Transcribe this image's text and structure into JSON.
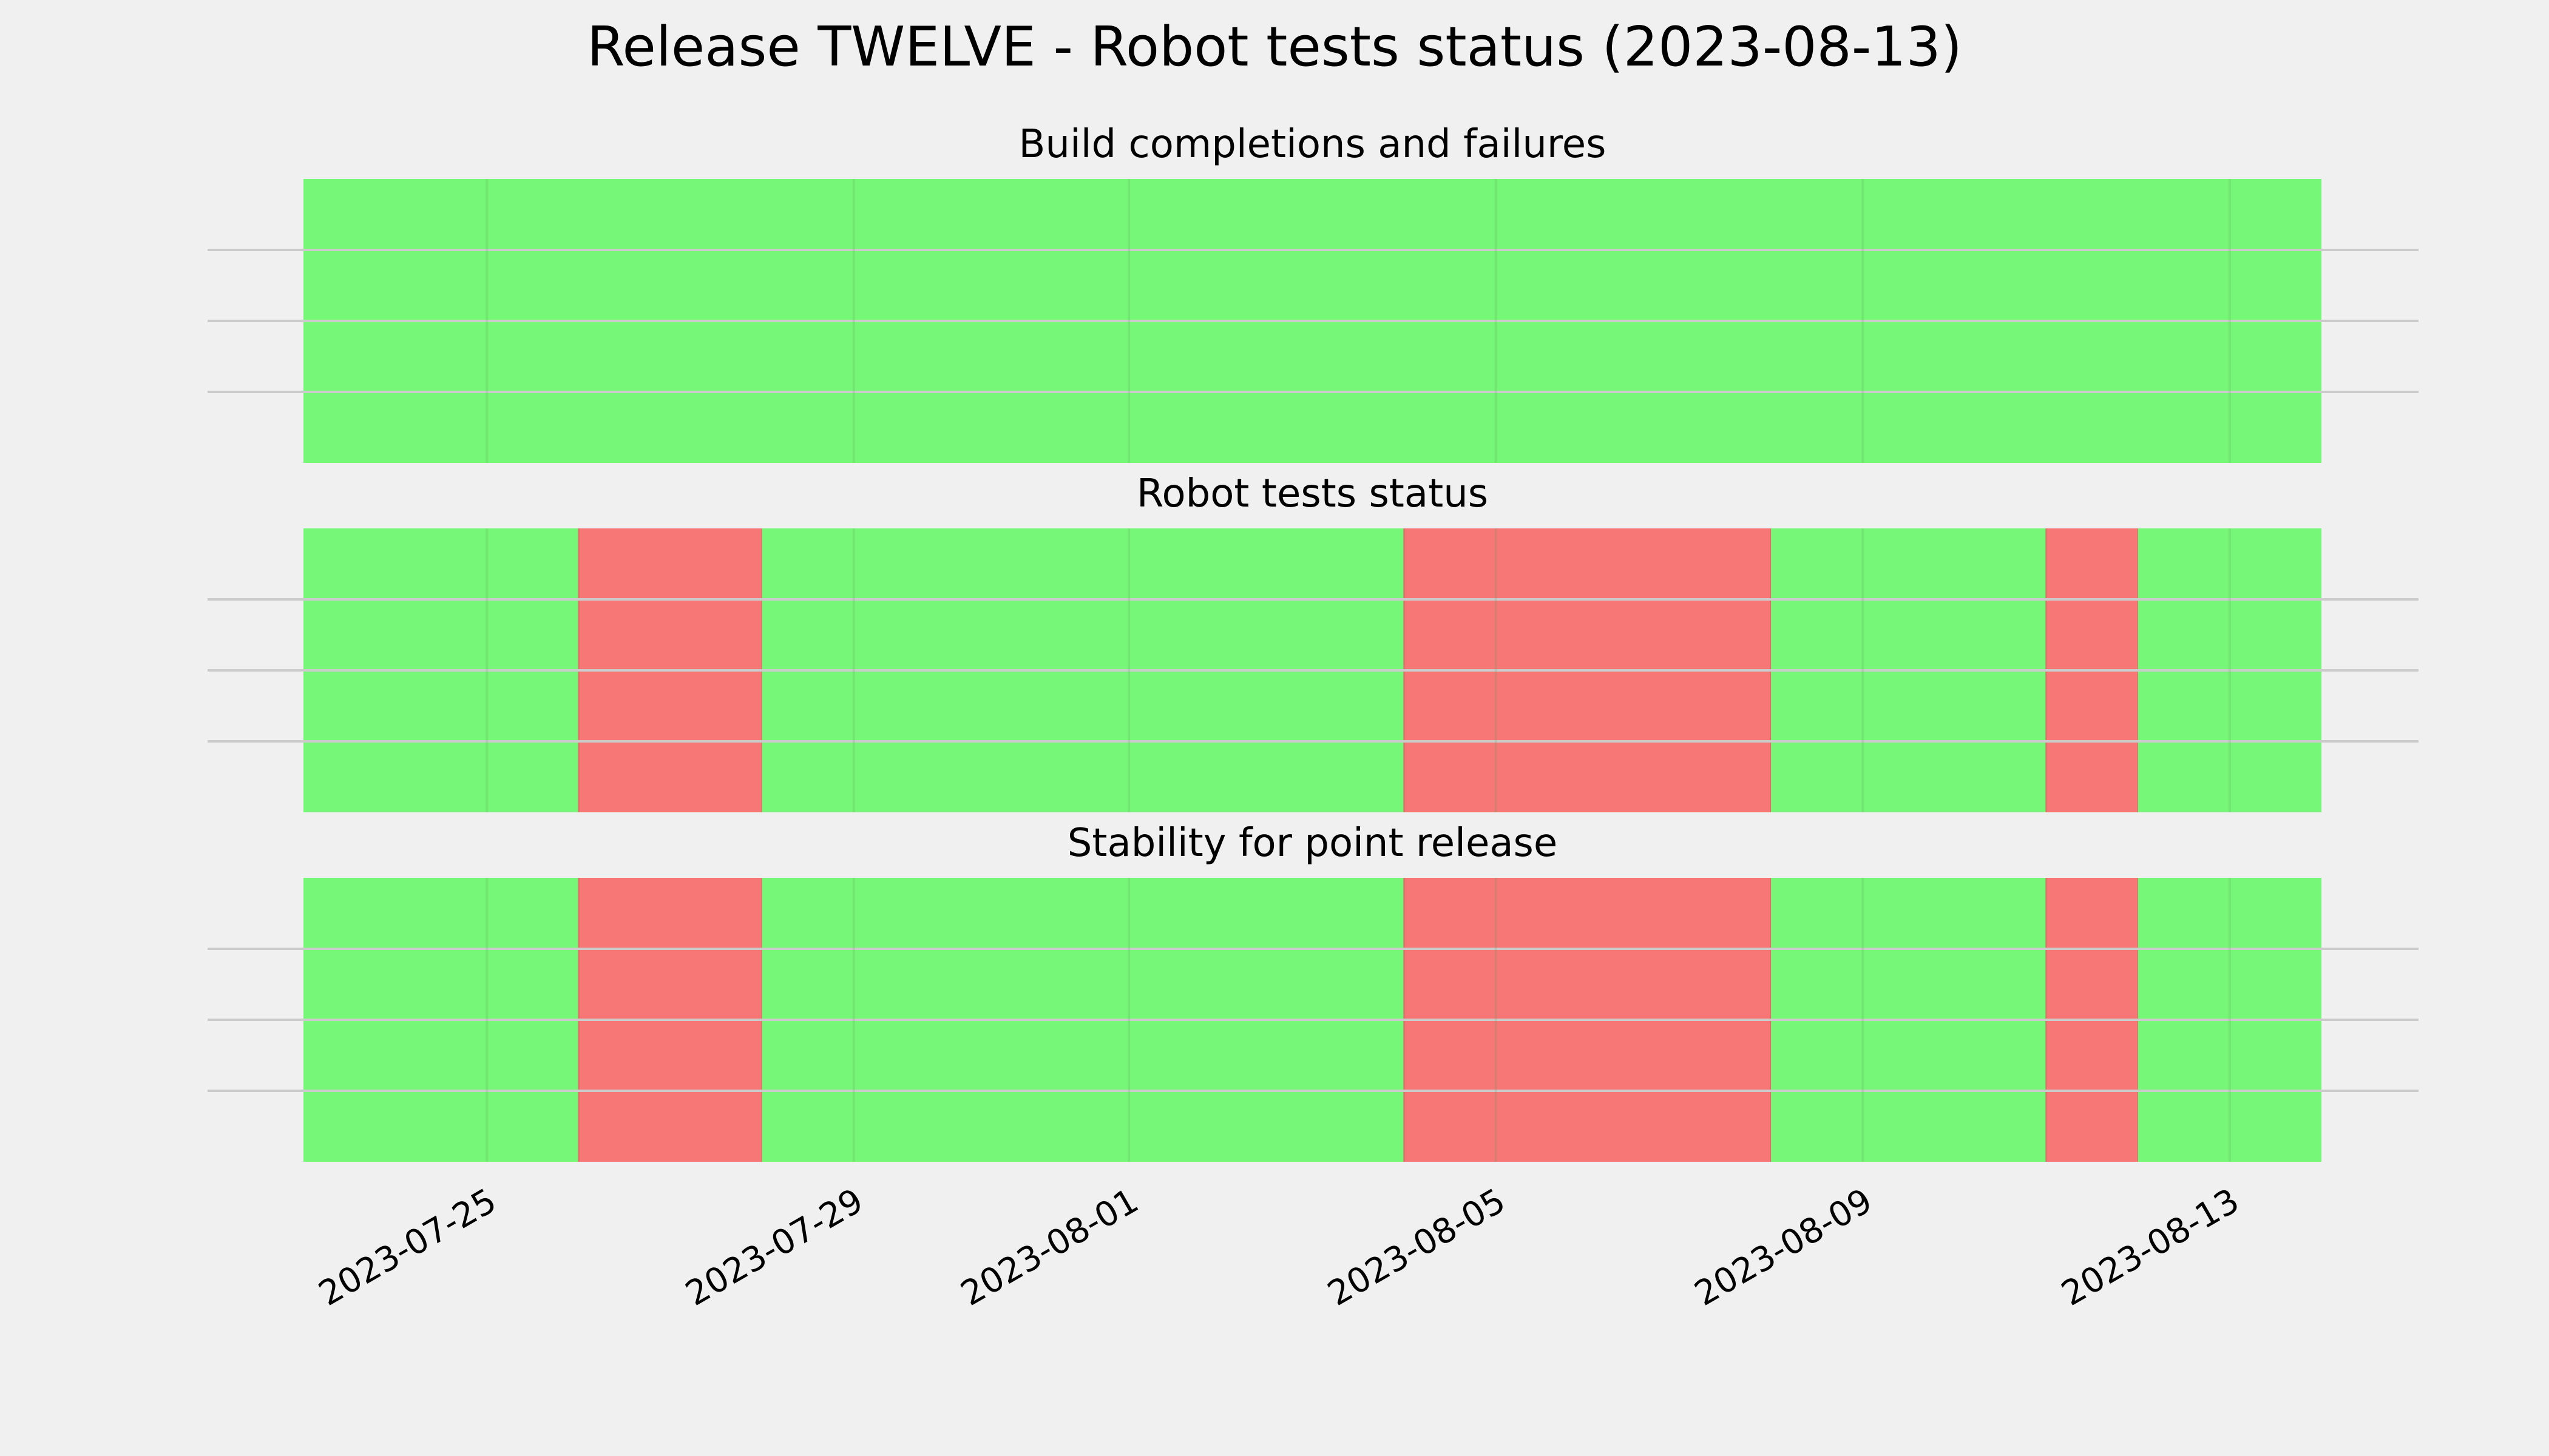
{
  "chart_data": {
    "type": "timeline",
    "title": "Release TWELVE - Robot tests status (2023-08-13)",
    "x_axis": {
      "type": "date",
      "range": [
        "2023-07-23",
        "2023-08-14"
      ],
      "tick_labels": [
        "2023-07-25",
        "2023-07-29",
        "2023-08-01",
        "2023-08-05",
        "2023-08-09",
        "2023-08-13"
      ]
    },
    "y_axis": {
      "grid_lines": 3,
      "tick_labels": []
    },
    "grid": true,
    "colors": {
      "pass": "#77f777",
      "fail": "#f77777",
      "background": "#f0f0f0",
      "grid": "#cbcbcb"
    },
    "panels": [
      {
        "title": "Build completions and failures",
        "segments": [
          {
            "start": "2023-07-23",
            "end": "2023-08-14",
            "status": "pass"
          }
        ]
      },
      {
        "title": "Robot tests status",
        "segments": [
          {
            "start": "2023-07-23",
            "end": "2023-07-26",
            "status": "pass"
          },
          {
            "start": "2023-07-26",
            "end": "2023-07-28",
            "status": "fail"
          },
          {
            "start": "2023-07-28",
            "end": "2023-08-04",
            "status": "pass"
          },
          {
            "start": "2023-08-04",
            "end": "2023-08-08",
            "status": "fail"
          },
          {
            "start": "2023-08-08",
            "end": "2023-08-11",
            "status": "pass"
          },
          {
            "start": "2023-08-11",
            "end": "2023-08-12",
            "status": "fail"
          },
          {
            "start": "2023-08-12",
            "end": "2023-08-14",
            "status": "pass"
          }
        ]
      },
      {
        "title": "Stability for point release",
        "segments": [
          {
            "start": "2023-07-23",
            "end": "2023-07-26",
            "status": "pass"
          },
          {
            "start": "2023-07-26",
            "end": "2023-07-28",
            "status": "fail"
          },
          {
            "start": "2023-07-28",
            "end": "2023-08-04",
            "status": "pass"
          },
          {
            "start": "2023-08-04",
            "end": "2023-08-08",
            "status": "fail"
          },
          {
            "start": "2023-08-08",
            "end": "2023-08-11",
            "status": "pass"
          },
          {
            "start": "2023-08-11",
            "end": "2023-08-12",
            "status": "fail"
          },
          {
            "start": "2023-08-12",
            "end": "2023-08-14",
            "status": "pass"
          }
        ]
      }
    ]
  }
}
